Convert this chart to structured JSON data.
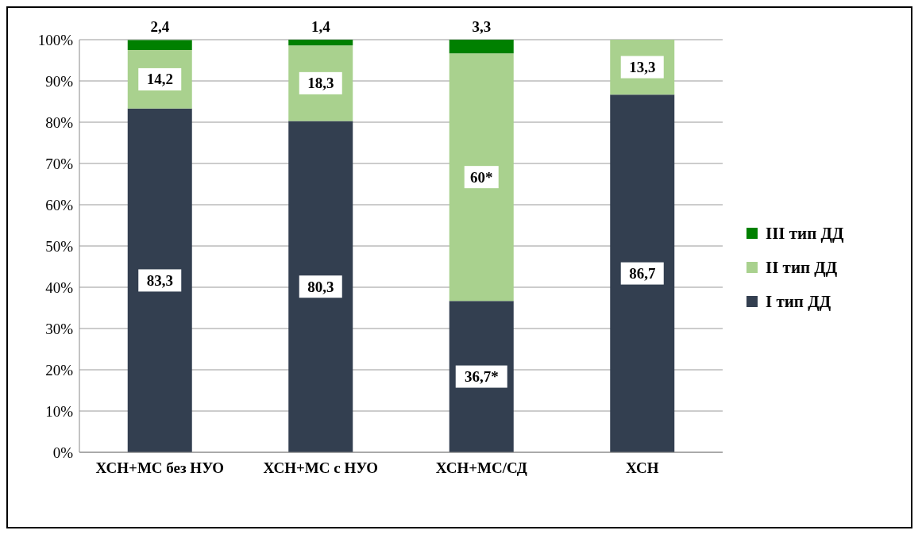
{
  "chart_data": {
    "type": "bar",
    "stacked": true,
    "categories": [
      "ХСН+МС без НУО",
      "ХСН+МС с НУО",
      "ХСН+МС/СД",
      "ХСН"
    ],
    "series": [
      {
        "name": "I тип ДД",
        "color": "#333f50",
        "values": [
          83.3,
          80.3,
          36.7,
          86.7
        ],
        "value_labels": [
          "83,3",
          "80,3",
          "36,7*",
          "86,7"
        ]
      },
      {
        "name": "II тип ДД",
        "color": "#a9d18e",
        "values": [
          14.2,
          18.3,
          60,
          13.3
        ],
        "value_labels": [
          "14,2",
          "18,3",
          "60*",
          "13,3"
        ]
      },
      {
        "name": "III тип ДД",
        "color": "#008000",
        "values": [
          2.4,
          1.4,
          3.3,
          null
        ],
        "value_labels": [
          "2,4",
          "1,4",
          "3,3",
          null
        ]
      }
    ],
    "ylim": [
      0,
      100
    ],
    "yticks": [
      {
        "value": 0,
        "label": "0%"
      },
      {
        "value": 10,
        "label": "10%"
      },
      {
        "value": 20,
        "label": "20%"
      },
      {
        "value": 30,
        "label": "30%"
      },
      {
        "value": 40,
        "label": "40%"
      },
      {
        "value": 50,
        "label": "50%"
      },
      {
        "value": 60,
        "label": "60%"
      },
      {
        "value": 70,
        "label": "70%"
      },
      {
        "value": 80,
        "label": "80%"
      },
      {
        "value": 90,
        "label": "90%"
      },
      {
        "value": 100,
        "label": "100%"
      }
    ],
    "grid": "y",
    "legend": "right"
  }
}
